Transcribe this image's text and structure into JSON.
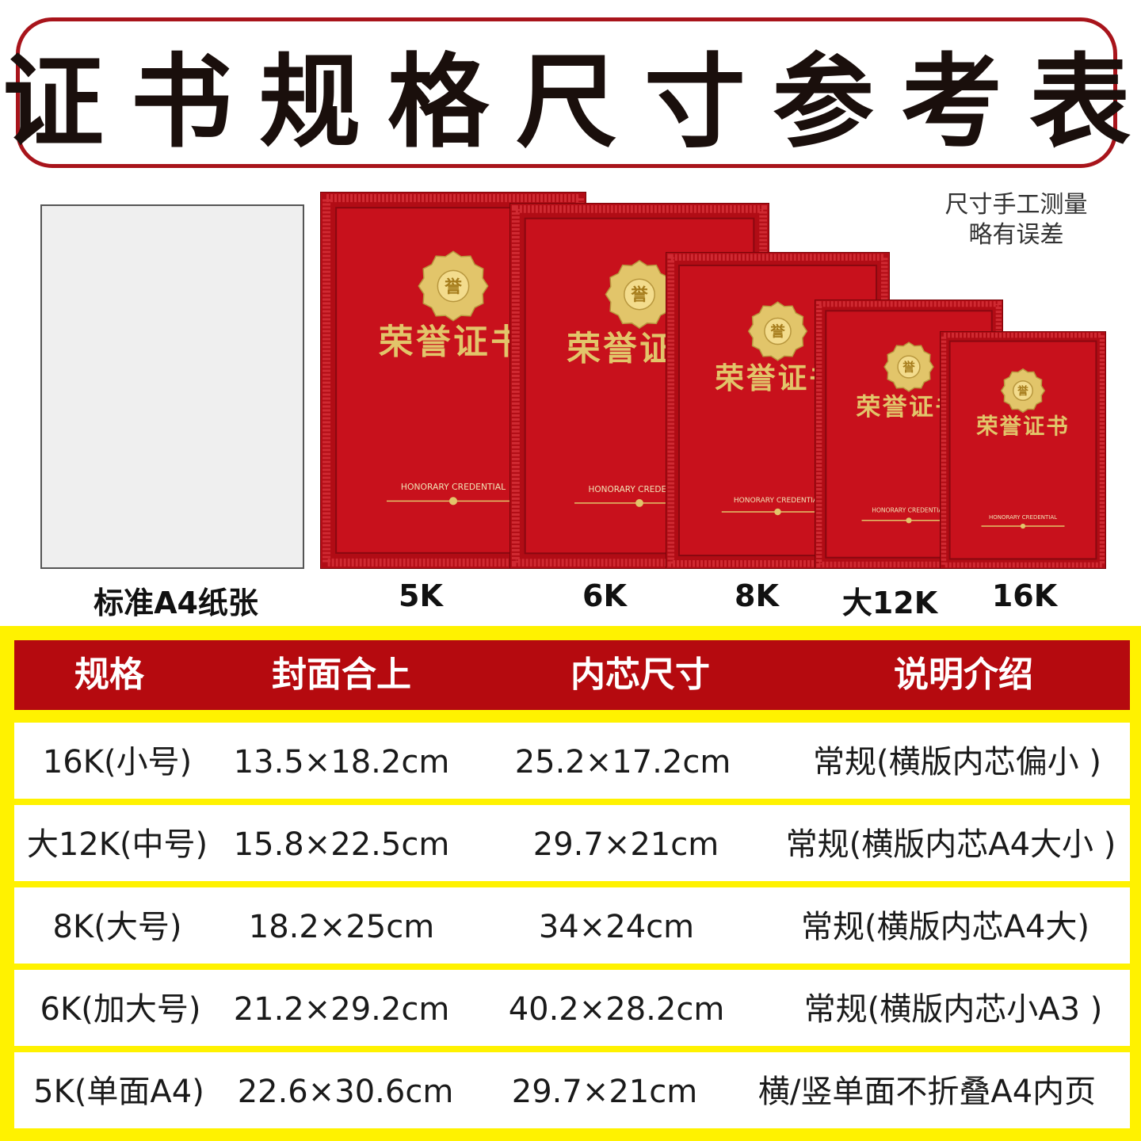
{
  "title": "证书规格尺寸参考表",
  "note": [
    "尺寸手工测量",
    "略有误差"
  ],
  "cover": {
    "title": "荣誉证书",
    "subtitle": "HONORARY CREDENTIAL",
    "emblem_char": "誉",
    "colors": {
      "red": "#c8111c",
      "gold": "#e2c56a"
    }
  },
  "size_labels": [
    "标准A4纸张",
    "5K",
    "6K",
    "8K",
    "大12K",
    "16K"
  ],
  "table": {
    "headers": [
      "规格",
      "封面合上",
      "内芯尺寸",
      "说明介绍"
    ],
    "rows": [
      [
        "16K(小号)",
        "13.5×18.2cm",
        "25.2×17.2cm",
        "常规(横版内芯偏小 )"
      ],
      [
        "大12K(中号)",
        "15.8×22.5cm",
        "29.7×21cm",
        "常规(横版内芯A4大小 )"
      ],
      [
        "8K(大号)",
        "18.2×25cm",
        "34×24cm",
        "常规(横版内芯A4大)"
      ],
      [
        "6K(加大号)",
        "21.2×29.2cm",
        "40.2×28.2cm",
        "常规(横版内芯小A3 )"
      ],
      [
        "5K(单面A4)",
        "22.6×30.6cm",
        "29.7×21cm",
        "横/竖单面不折叠A4内页"
      ]
    ]
  }
}
